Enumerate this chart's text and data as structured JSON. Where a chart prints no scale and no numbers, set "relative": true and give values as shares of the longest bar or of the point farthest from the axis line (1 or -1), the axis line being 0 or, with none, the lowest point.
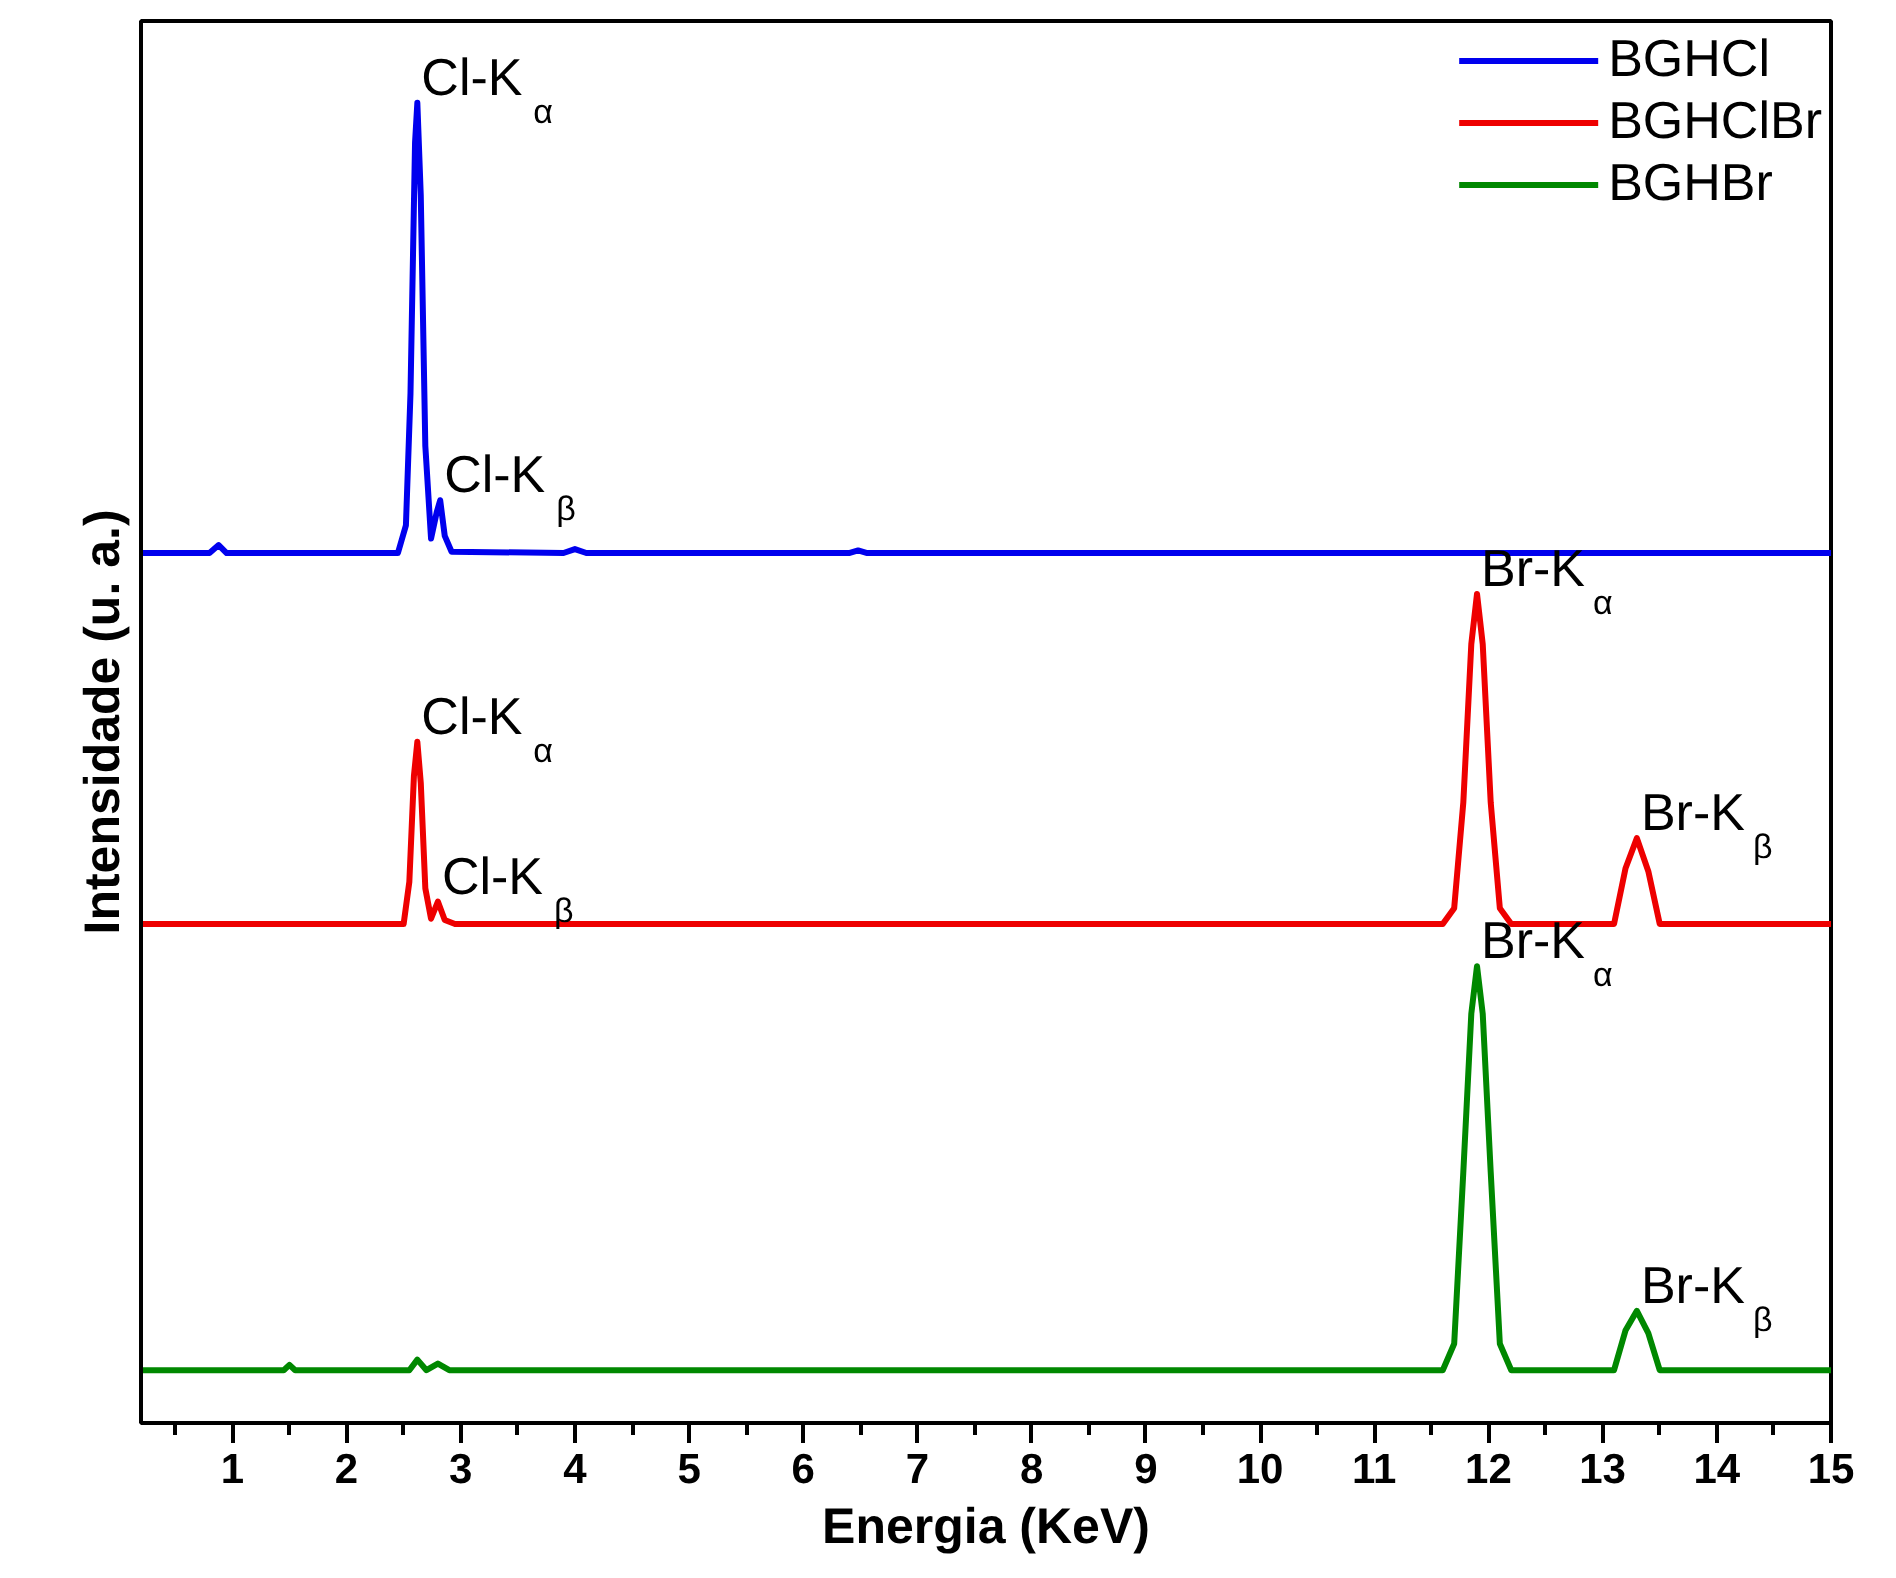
{
  "chart_data": {
    "type": "line",
    "relative": true,
    "xlabel": "Energia (KeV)",
    "ylabel": "Intensidade (u. a.)",
    "xlim": [
      0.2,
      15
    ],
    "xticks": [
      1,
      2,
      3,
      4,
      5,
      6,
      7,
      8,
      9,
      10,
      11,
      12,
      13,
      14,
      15
    ],
    "legend": "top right",
    "grid": false,
    "line_style": "solid",
    "tick_labels": "x",
    "series": [
      {
        "name": "BGHCl",
        "color": "#0000ee",
        "x": [
          0.2,
          0.8,
          0.88,
          0.95,
          2.45,
          2.52,
          2.56,
          2.6,
          2.62,
          2.65,
          2.69,
          2.74,
          2.79,
          2.82,
          2.86,
          2.92,
          3.9,
          4.0,
          4.1,
          6.4,
          6.48,
          6.56,
          15
        ],
        "values": [
          0.659,
          0.659,
          0.665,
          0.659,
          0.659,
          0.68,
          0.78,
          0.97,
          1.0,
          0.93,
          0.74,
          0.67,
          0.69,
          0.699,
          0.672,
          0.66,
          0.659,
          0.662,
          0.659,
          0.659,
          0.661,
          0.659,
          0.659
        ]
      },
      {
        "name": "BGHClBr",
        "color": "#ee0000",
        "x": [
          0.2,
          2.5,
          2.55,
          2.59,
          2.62,
          2.65,
          2.69,
          2.74,
          2.8,
          2.86,
          2.95,
          11.6,
          11.7,
          11.78,
          11.85,
          11.9,
          11.95,
          12.02,
          12.1,
          12.2,
          13.1,
          13.2,
          13.3,
          13.4,
          13.5,
          15
        ],
        "values": [
          0.378,
          0.378,
          0.41,
          0.49,
          0.516,
          0.485,
          0.405,
          0.382,
          0.395,
          0.381,
          0.378,
          0.378,
          0.39,
          0.47,
          0.59,
          0.628,
          0.59,
          0.47,
          0.39,
          0.378,
          0.378,
          0.42,
          0.443,
          0.418,
          0.378,
          0.378
        ]
      },
      {
        "name": "BGHBr",
        "color": "#008800",
        "x": [
          0.2,
          1.45,
          1.5,
          1.55,
          2.55,
          2.62,
          2.7,
          2.8,
          2.9,
          11.6,
          11.7,
          11.78,
          11.85,
          11.9,
          11.95,
          12.02,
          12.1,
          12.2,
          13.1,
          13.2,
          13.3,
          13.4,
          13.5,
          15
        ],
        "values": [
          0.04,
          0.04,
          0.044,
          0.04,
          0.04,
          0.048,
          0.04,
          0.045,
          0.04,
          0.04,
          0.06,
          0.19,
          0.31,
          0.346,
          0.31,
          0.19,
          0.06,
          0.04,
          0.04,
          0.07,
          0.085,
          0.068,
          0.04,
          0.04
        ]
      }
    ],
    "annotations": [
      {
        "text": "Cl-K$_{α}$",
        "x": 2.62,
        "y": 1.0
      },
      {
        "text": "Cl-K$_{β}$",
        "x": 2.82,
        "y": 0.699
      },
      {
        "text": "Cl-K$_{α}$",
        "x": 2.62,
        "y": 0.516
      },
      {
        "text": "Cl-K$_{β}$",
        "x": 2.8,
        "y": 0.395
      },
      {
        "text": "Br-K$_{α}$",
        "x": 11.9,
        "y": 0.628
      },
      {
        "text": "Br-K$_{β}$",
        "x": 13.3,
        "y": 0.443
      },
      {
        "text": "Br-K$_{α}$",
        "x": 11.9,
        "y": 0.346
      },
      {
        "text": "Br-K$_{β}$",
        "x": 13.3,
        "y": 0.085
      }
    ]
  }
}
